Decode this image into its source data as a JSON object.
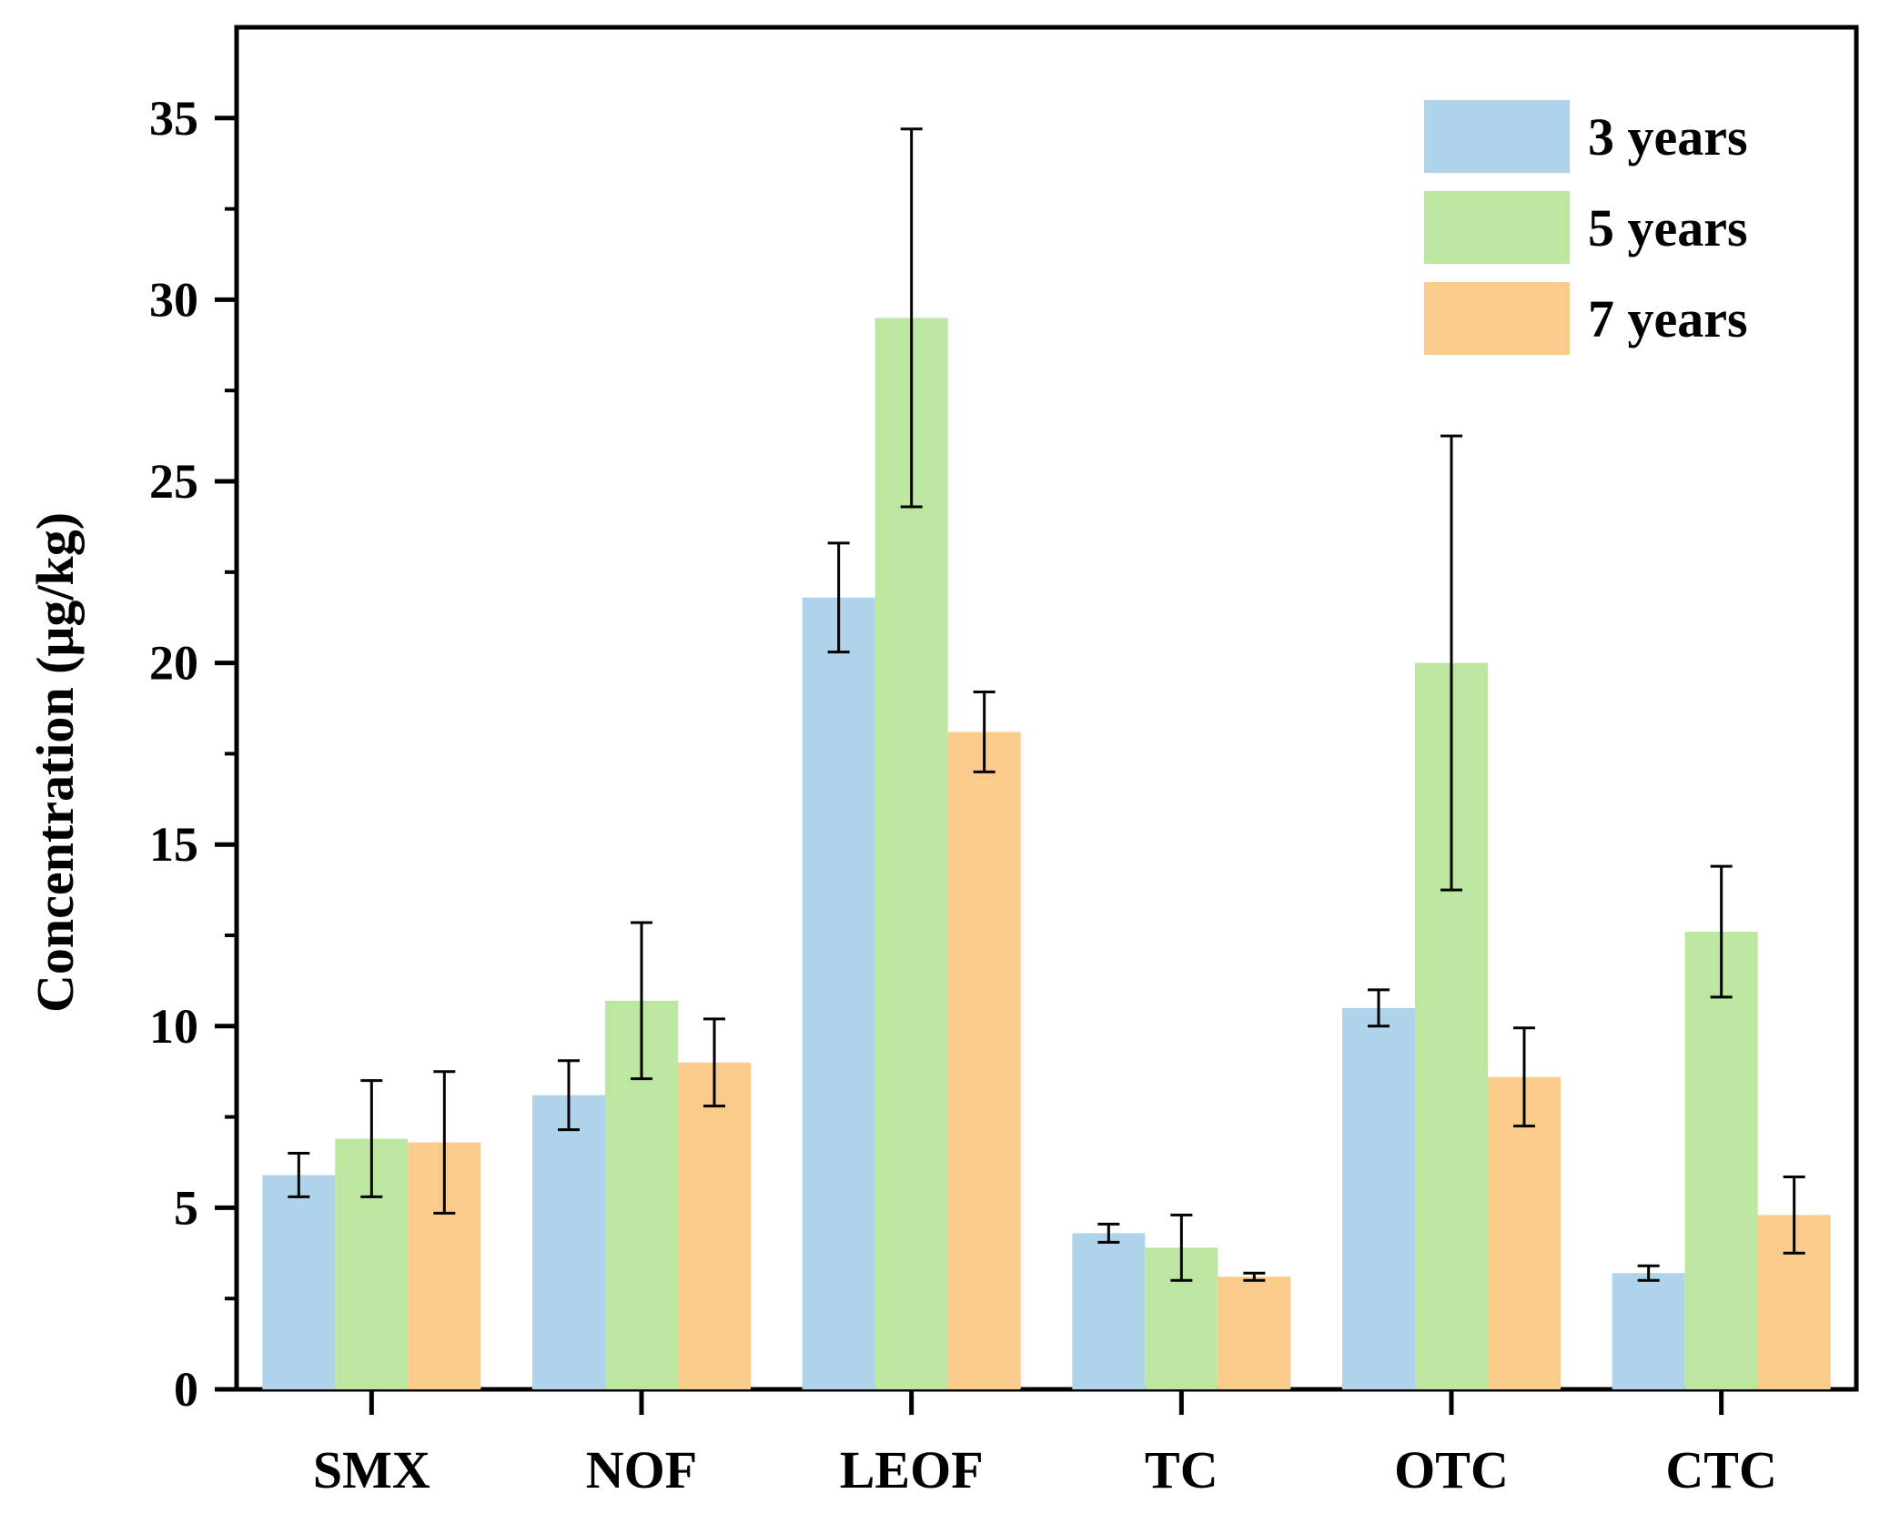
{
  "chart_data": {
    "type": "bar",
    "title": "",
    "xlabel": "",
    "ylabel": "Concentration (μg/kg)",
    "ylim": [
      0,
      37.5
    ],
    "yticks": [
      0,
      5,
      10,
      15,
      20,
      25,
      30,
      35
    ],
    "categories": [
      "SMX",
      "NOF",
      "LEOF",
      "TC",
      "OTC",
      "CTC"
    ],
    "legend_position": "top-right",
    "series": [
      {
        "name": "3 years",
        "color": "#afd3ea",
        "values": [
          5.9,
          8.1,
          21.8,
          4.3,
          10.5,
          3.2
        ],
        "errors": [
          0.6,
          0.95,
          1.5,
          0.25,
          0.5,
          0.2
        ]
      },
      {
        "name": "5 years",
        "color": "#bde7a1",
        "values": [
          6.9,
          10.7,
          29.5,
          3.9,
          20.0,
          12.6
        ],
        "errors": [
          1.6,
          2.15,
          5.2,
          0.9,
          6.25,
          1.8
        ]
      },
      {
        "name": "7 years",
        "color": "#fbcb8b",
        "values": [
          6.8,
          9.0,
          18.1,
          3.1,
          8.6,
          4.8
        ],
        "errors": [
          1.95,
          1.2,
          1.1,
          0.1,
          1.35,
          1.05
        ]
      }
    ]
  }
}
